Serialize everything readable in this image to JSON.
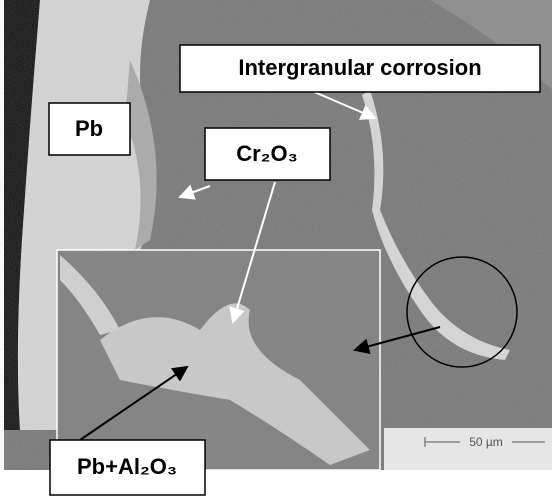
{
  "labels": {
    "corrosion": "Intergranular corrosion",
    "pb": "Pb",
    "cr2o3": "Cr₂O₃",
    "pb_al2o3": "Pb+Al₂O₃"
  },
  "scale_bar": "50 µm"
}
